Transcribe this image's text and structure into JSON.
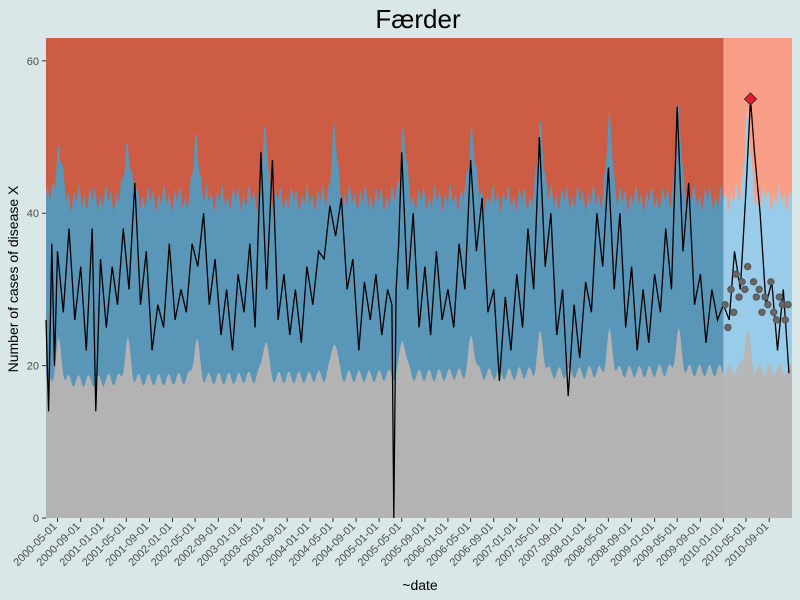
{
  "chart_data": {
    "type": "line",
    "title": "Færder",
    "xlabel": "~date",
    "ylabel": "Number of cases of disease X",
    "ylim": [
      0,
      63
    ],
    "y_ticks": [
      0,
      20,
      40,
      60
    ],
    "x_range": [
      "2000-03-01",
      "2010-12-31"
    ],
    "x_tick_labels": [
      "2000-05-01",
      "2000-09-01",
      "2001-01-01",
      "2001-05-01",
      "2001-09-01",
      "2002-01-01",
      "2002-05-01",
      "2002-09-01",
      "2003-01-01",
      "2003-05-01",
      "2003-09-01",
      "2004-01-01",
      "2004-05-01",
      "2004-09-01",
      "2005-01-01",
      "2005-05-01",
      "2005-09-01",
      "2006-01-01",
      "2006-05-01",
      "2006-09-01",
      "2007-01-01",
      "2007-05-01",
      "2007-09-01",
      "2008-01-01",
      "2008-05-01",
      "2008-09-01",
      "2009-01-01",
      "2009-05-01",
      "2009-09-01",
      "2010-01-01",
      "2010-05-01",
      "2010-09-01"
    ],
    "grid": false,
    "legend": "none",
    "forecast_start": "2010-01-01",
    "regions": {
      "normal": {
        "color": "#b3b3b3"
      },
      "expected": {
        "color": "#5996b8",
        "forecast_color": "#93c9e8"
      },
      "high": {
        "color": "#cd5c45",
        "forecast_color": "#fa9a80"
      }
    },
    "series": [
      {
        "values": [
          {
            "x": "2000-03-01",
            "y": 26
          },
          {
            "x": "2000-03-15",
            "y": 14
          },
          {
            "x": "2000-04-01",
            "y": 36
          },
          {
            "x": "2000-04-15",
            "y": 20
          },
          {
            "x": "2000-05-01",
            "y": 35
          },
          {
            "x": "2000-06-01",
            "y": 27
          },
          {
            "x": "2000-07-01",
            "y": 38
          },
          {
            "x": "2000-08-01",
            "y": 26
          },
          {
            "x": "2000-09-01",
            "y": 33
          },
          {
            "x": "2000-10-01",
            "y": 22
          },
          {
            "x": "2000-11-01",
            "y": 38
          },
          {
            "x": "2000-11-20",
            "y": 14
          },
          {
            "x": "2000-12-15",
            "y": 34
          },
          {
            "x": "2001-01-15",
            "y": 25
          },
          {
            "x": "2001-02-15",
            "y": 33
          },
          {
            "x": "2001-03-15",
            "y": 28
          },
          {
            "x": "2001-04-15",
            "y": 38
          },
          {
            "x": "2001-05-15",
            "y": 30
          },
          {
            "x": "2001-06-15",
            "y": 44
          },
          {
            "x": "2001-07-15",
            "y": 28
          },
          {
            "x": "2001-08-15",
            "y": 35
          },
          {
            "x": "2001-09-15",
            "y": 22
          },
          {
            "x": "2001-10-15",
            "y": 28
          },
          {
            "x": "2001-11-15",
            "y": 25
          },
          {
            "x": "2001-12-15",
            "y": 36
          },
          {
            "x": "2002-01-15",
            "y": 26
          },
          {
            "x": "2002-02-15",
            "y": 30
          },
          {
            "x": "2002-03-15",
            "y": 27
          },
          {
            "x": "2002-04-15",
            "y": 36
          },
          {
            "x": "2002-05-15",
            "y": 33
          },
          {
            "x": "2002-06-15",
            "y": 40
          },
          {
            "x": "2002-07-15",
            "y": 28
          },
          {
            "x": "2002-08-15",
            "y": 34
          },
          {
            "x": "2002-09-15",
            "y": 24
          },
          {
            "x": "2002-10-15",
            "y": 30
          },
          {
            "x": "2002-11-15",
            "y": 22
          },
          {
            "x": "2002-12-15",
            "y": 32
          },
          {
            "x": "2003-01-15",
            "y": 27
          },
          {
            "x": "2003-02-15",
            "y": 36
          },
          {
            "x": "2003-03-15",
            "y": 25
          },
          {
            "x": "2003-04-15",
            "y": 48
          },
          {
            "x": "2003-05-15",
            "y": 30
          },
          {
            "x": "2003-06-15",
            "y": 47
          },
          {
            "x": "2003-07-15",
            "y": 26
          },
          {
            "x": "2003-08-15",
            "y": 32
          },
          {
            "x": "2003-09-15",
            "y": 24
          },
          {
            "x": "2003-10-15",
            "y": 30
          },
          {
            "x": "2003-11-15",
            "y": 23
          },
          {
            "x": "2003-12-15",
            "y": 33
          },
          {
            "x": "2004-01-15",
            "y": 28
          },
          {
            "x": "2004-02-15",
            "y": 35
          },
          {
            "x": "2004-03-15",
            "y": 34
          },
          {
            "x": "2004-04-15",
            "y": 41
          },
          {
            "x": "2004-05-15",
            "y": 37
          },
          {
            "x": "2004-06-15",
            "y": 42
          },
          {
            "x": "2004-07-15",
            "y": 30
          },
          {
            "x": "2004-08-15",
            "y": 34
          },
          {
            "x": "2004-09-15",
            "y": 22
          },
          {
            "x": "2004-10-15",
            "y": 31
          },
          {
            "x": "2004-11-15",
            "y": 26
          },
          {
            "x": "2004-12-15",
            "y": 32
          },
          {
            "x": "2005-01-15",
            "y": 24
          },
          {
            "x": "2005-02-15",
            "y": 30
          },
          {
            "x": "2005-03-10",
            "y": 28
          },
          {
            "x": "2005-03-20",
            "y": 0
          },
          {
            "x": "2005-04-01",
            "y": 30
          },
          {
            "x": "2005-04-15",
            "y": 36
          },
          {
            "x": "2005-05-01",
            "y": 48
          },
          {
            "x": "2005-06-01",
            "y": 30
          },
          {
            "x": "2005-07-01",
            "y": 40
          },
          {
            "x": "2005-08-01",
            "y": 25
          },
          {
            "x": "2005-09-01",
            "y": 33
          },
          {
            "x": "2005-10-01",
            "y": 24
          },
          {
            "x": "2005-11-01",
            "y": 35
          },
          {
            "x": "2005-12-01",
            "y": 26
          },
          {
            "x": "2006-01-01",
            "y": 30
          },
          {
            "x": "2006-02-01",
            "y": 25
          },
          {
            "x": "2006-03-01",
            "y": 36
          },
          {
            "x": "2006-04-01",
            "y": 30
          },
          {
            "x": "2006-05-01",
            "y": 47
          },
          {
            "x": "2006-06-01",
            "y": 35
          },
          {
            "x": "2006-07-01",
            "y": 42
          },
          {
            "x": "2006-08-01",
            "y": 27
          },
          {
            "x": "2006-09-01",
            "y": 30
          },
          {
            "x": "2006-10-01",
            "y": 18
          },
          {
            "x": "2006-11-01",
            "y": 29
          },
          {
            "x": "2006-12-01",
            "y": 22
          },
          {
            "x": "2007-01-01",
            "y": 32
          },
          {
            "x": "2007-02-01",
            "y": 25
          },
          {
            "x": "2007-03-01",
            "y": 38
          },
          {
            "x": "2007-04-01",
            "y": 30
          },
          {
            "x": "2007-05-01",
            "y": 50
          },
          {
            "x": "2007-06-01",
            "y": 33
          },
          {
            "x": "2007-07-01",
            "y": 40
          },
          {
            "x": "2007-08-01",
            "y": 24
          },
          {
            "x": "2007-09-01",
            "y": 30
          },
          {
            "x": "2007-10-01",
            "y": 16
          },
          {
            "x": "2007-11-01",
            "y": 28
          },
          {
            "x": "2007-12-01",
            "y": 21
          },
          {
            "x": "2008-01-01",
            "y": 31
          },
          {
            "x": "2008-02-01",
            "y": 27
          },
          {
            "x": "2008-03-01",
            "y": 40
          },
          {
            "x": "2008-04-01",
            "y": 33
          },
          {
            "x": "2008-05-01",
            "y": 46
          },
          {
            "x": "2008-06-01",
            "y": 30
          },
          {
            "x": "2008-07-01",
            "y": 40
          },
          {
            "x": "2008-08-01",
            "y": 25
          },
          {
            "x": "2008-09-01",
            "y": 33
          },
          {
            "x": "2008-10-01",
            "y": 22
          },
          {
            "x": "2008-11-01",
            "y": 30
          },
          {
            "x": "2008-12-01",
            "y": 23
          },
          {
            "x": "2009-01-01",
            "y": 32
          },
          {
            "x": "2009-02-01",
            "y": 27
          },
          {
            "x": "2009-03-01",
            "y": 38
          },
          {
            "x": "2009-04-01",
            "y": 30
          },
          {
            "x": "2009-05-01",
            "y": 54
          },
          {
            "x": "2009-06-01",
            "y": 35
          },
          {
            "x": "2009-07-01",
            "y": 44
          },
          {
            "x": "2009-08-01",
            "y": 28
          },
          {
            "x": "2009-09-01",
            "y": 32
          },
          {
            "x": "2009-10-01",
            "y": 23
          },
          {
            "x": "2009-11-01",
            "y": 30
          },
          {
            "x": "2009-12-01",
            "y": 26
          },
          {
            "x": "2010-01-01",
            "y": 28
          },
          {
            "x": "2010-02-01",
            "y": 26
          },
          {
            "x": "2010-03-01",
            "y": 35
          },
          {
            "x": "2010-04-01",
            "y": 30
          },
          {
            "x": "2010-05-01",
            "y": 43
          },
          {
            "x": "2010-05-25",
            "y": 55
          },
          {
            "x": "2010-06-15",
            "y": 48
          },
          {
            "x": "2010-07-15",
            "y": 40
          },
          {
            "x": "2010-08-15",
            "y": 28
          },
          {
            "x": "2010-09-15",
            "y": 31
          },
          {
            "x": "2010-10-15",
            "y": 22
          },
          {
            "x": "2010-11-15",
            "y": 30
          },
          {
            "x": "2010-12-15",
            "y": 19
          }
        ]
      }
    ],
    "forecast_points": [
      {
        "x": "2010-01-10",
        "y": 28
      },
      {
        "x": "2010-01-25",
        "y": 25
      },
      {
        "x": "2010-02-10",
        "y": 30
      },
      {
        "x": "2010-02-25",
        "y": 27
      },
      {
        "x": "2010-03-10",
        "y": 32
      },
      {
        "x": "2010-03-25",
        "y": 29
      },
      {
        "x": "2010-04-10",
        "y": 31
      },
      {
        "x": "2010-04-25",
        "y": 30
      },
      {
        "x": "2010-05-10",
        "y": 33
      },
      {
        "x": "2010-06-10",
        "y": 31
      },
      {
        "x": "2010-06-25",
        "y": 29
      },
      {
        "x": "2010-07-10",
        "y": 30
      },
      {
        "x": "2010-07-25",
        "y": 27
      },
      {
        "x": "2010-08-10",
        "y": 29
      },
      {
        "x": "2010-08-25",
        "y": 28
      },
      {
        "x": "2010-09-10",
        "y": 31
      },
      {
        "x": "2010-09-25",
        "y": 27
      },
      {
        "x": "2010-10-10",
        "y": 26
      },
      {
        "x": "2010-10-25",
        "y": 29
      },
      {
        "x": "2010-11-10",
        "y": 28
      },
      {
        "x": "2010-11-25",
        "y": 26
      },
      {
        "x": "2010-12-10",
        "y": 28
      }
    ],
    "highlight_point": {
      "x": "2010-05-25",
      "y": 55,
      "color": "#e8182b"
    }
  }
}
